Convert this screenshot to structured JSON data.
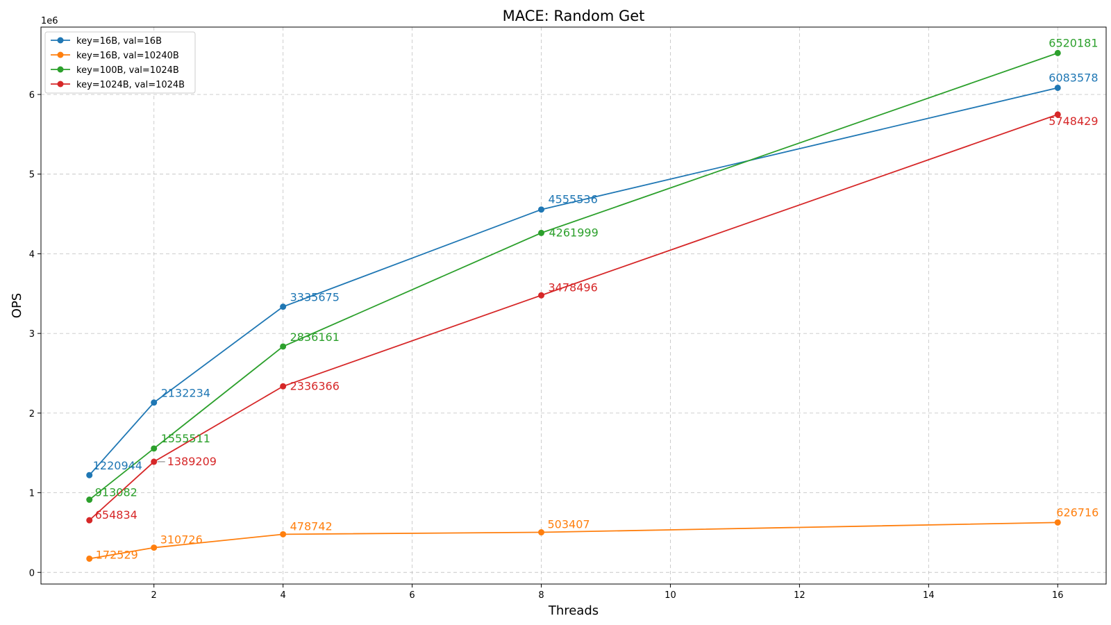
{
  "chart_data": {
    "type": "line",
    "title": "MACE: Random Get",
    "xlabel": "Threads",
    "ylabel": "OPS",
    "y_offset_label": "1e6",
    "x": [
      1,
      2,
      4,
      8,
      16
    ],
    "xlim": [
      0.25,
      16.75
    ],
    "ylim": [
      -146000,
      6846000
    ],
    "x_ticks": [
      2,
      4,
      6,
      8,
      10,
      12,
      14,
      16
    ],
    "y_ticks": [
      0,
      1000000,
      2000000,
      3000000,
      4000000,
      5000000,
      6000000
    ],
    "y_tick_labels": [
      "0",
      "1",
      "2",
      "3",
      "4",
      "5",
      "6"
    ],
    "grid": true,
    "legend_position": "upper-left",
    "series": [
      {
        "name": "key=16B, val=16B",
        "color": "#1f77b4",
        "values": [
          1220944,
          2132234,
          3335675,
          4555536,
          6083578
        ],
        "labels": [
          "1220944",
          "2132234",
          "3335675",
          "4555536",
          "6083578"
        ]
      },
      {
        "name": "key=16B, val=10240B",
        "color": "#ff7f0e",
        "values": [
          172529,
          310726,
          478742,
          503407,
          626716
        ],
        "labels": [
          "172529",
          "310726",
          "478742",
          "503407",
          "626716"
        ]
      },
      {
        "name": "key=100B, val=1024B",
        "color": "#2ca02c",
        "values": [
          913082,
          1555511,
          2836161,
          4261999,
          6520181
        ],
        "labels": [
          "913082",
          "1555511",
          "2836161",
          "4261999",
          "6520181"
        ]
      },
      {
        "name": "key=1024B, val=1024B",
        "color": "#d62728",
        "values": [
          654834,
          1389209,
          2336366,
          3478496,
          5748429
        ],
        "labels": [
          "654834",
          "1389209",
          "2336366",
          "3478496",
          "5748429"
        ]
      }
    ]
  }
}
